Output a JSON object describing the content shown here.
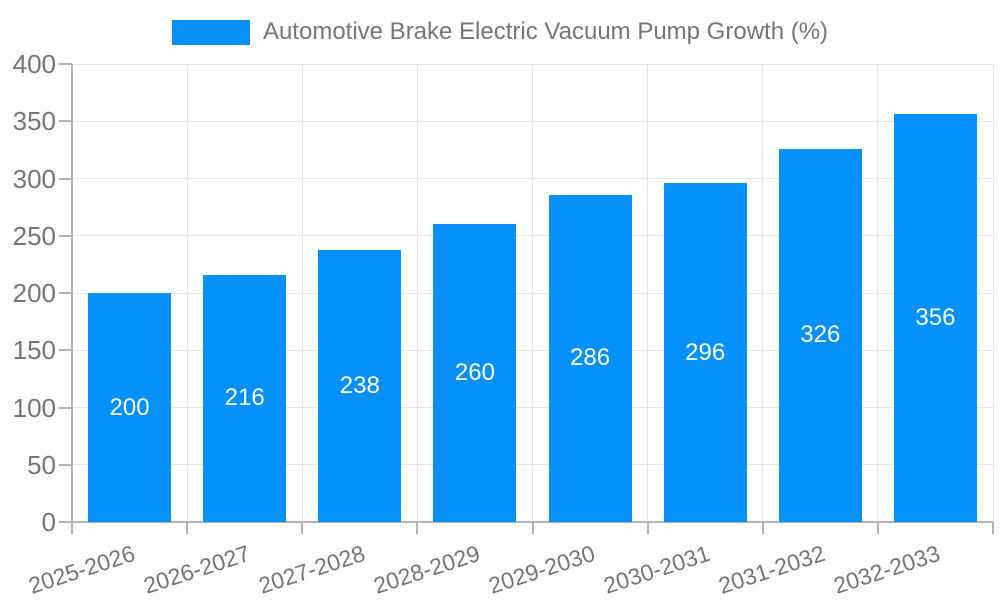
{
  "legend": {
    "label": "Automotive Brake Electric Vacuum Pump Growth (%)"
  },
  "colors": {
    "bar": "#0590fa",
    "grid": "#e6e6e6",
    "axis": "#b3b3b3",
    "tick_label": "#757575",
    "data_label": "#ffffff"
  },
  "chart_data": {
    "type": "bar",
    "title": "Automotive Brake Electric Vacuum Pump Growth (%)",
    "categories": [
      "2025-2026",
      "2026-2027",
      "2027-2028",
      "2028-2029",
      "2029-2030",
      "2030-2031",
      "2031-2032",
      "2032-2033"
    ],
    "values": [
      200,
      216,
      238,
      260,
      286,
      296,
      326,
      356
    ],
    "xlabel": "",
    "ylabel": "",
    "ylim": [
      0,
      400
    ],
    "yticks": [
      0,
      50,
      100,
      150,
      200,
      250,
      300,
      350,
      400
    ],
    "grid": true,
    "legend_position": "top",
    "bar_label_position": "center-inside"
  }
}
